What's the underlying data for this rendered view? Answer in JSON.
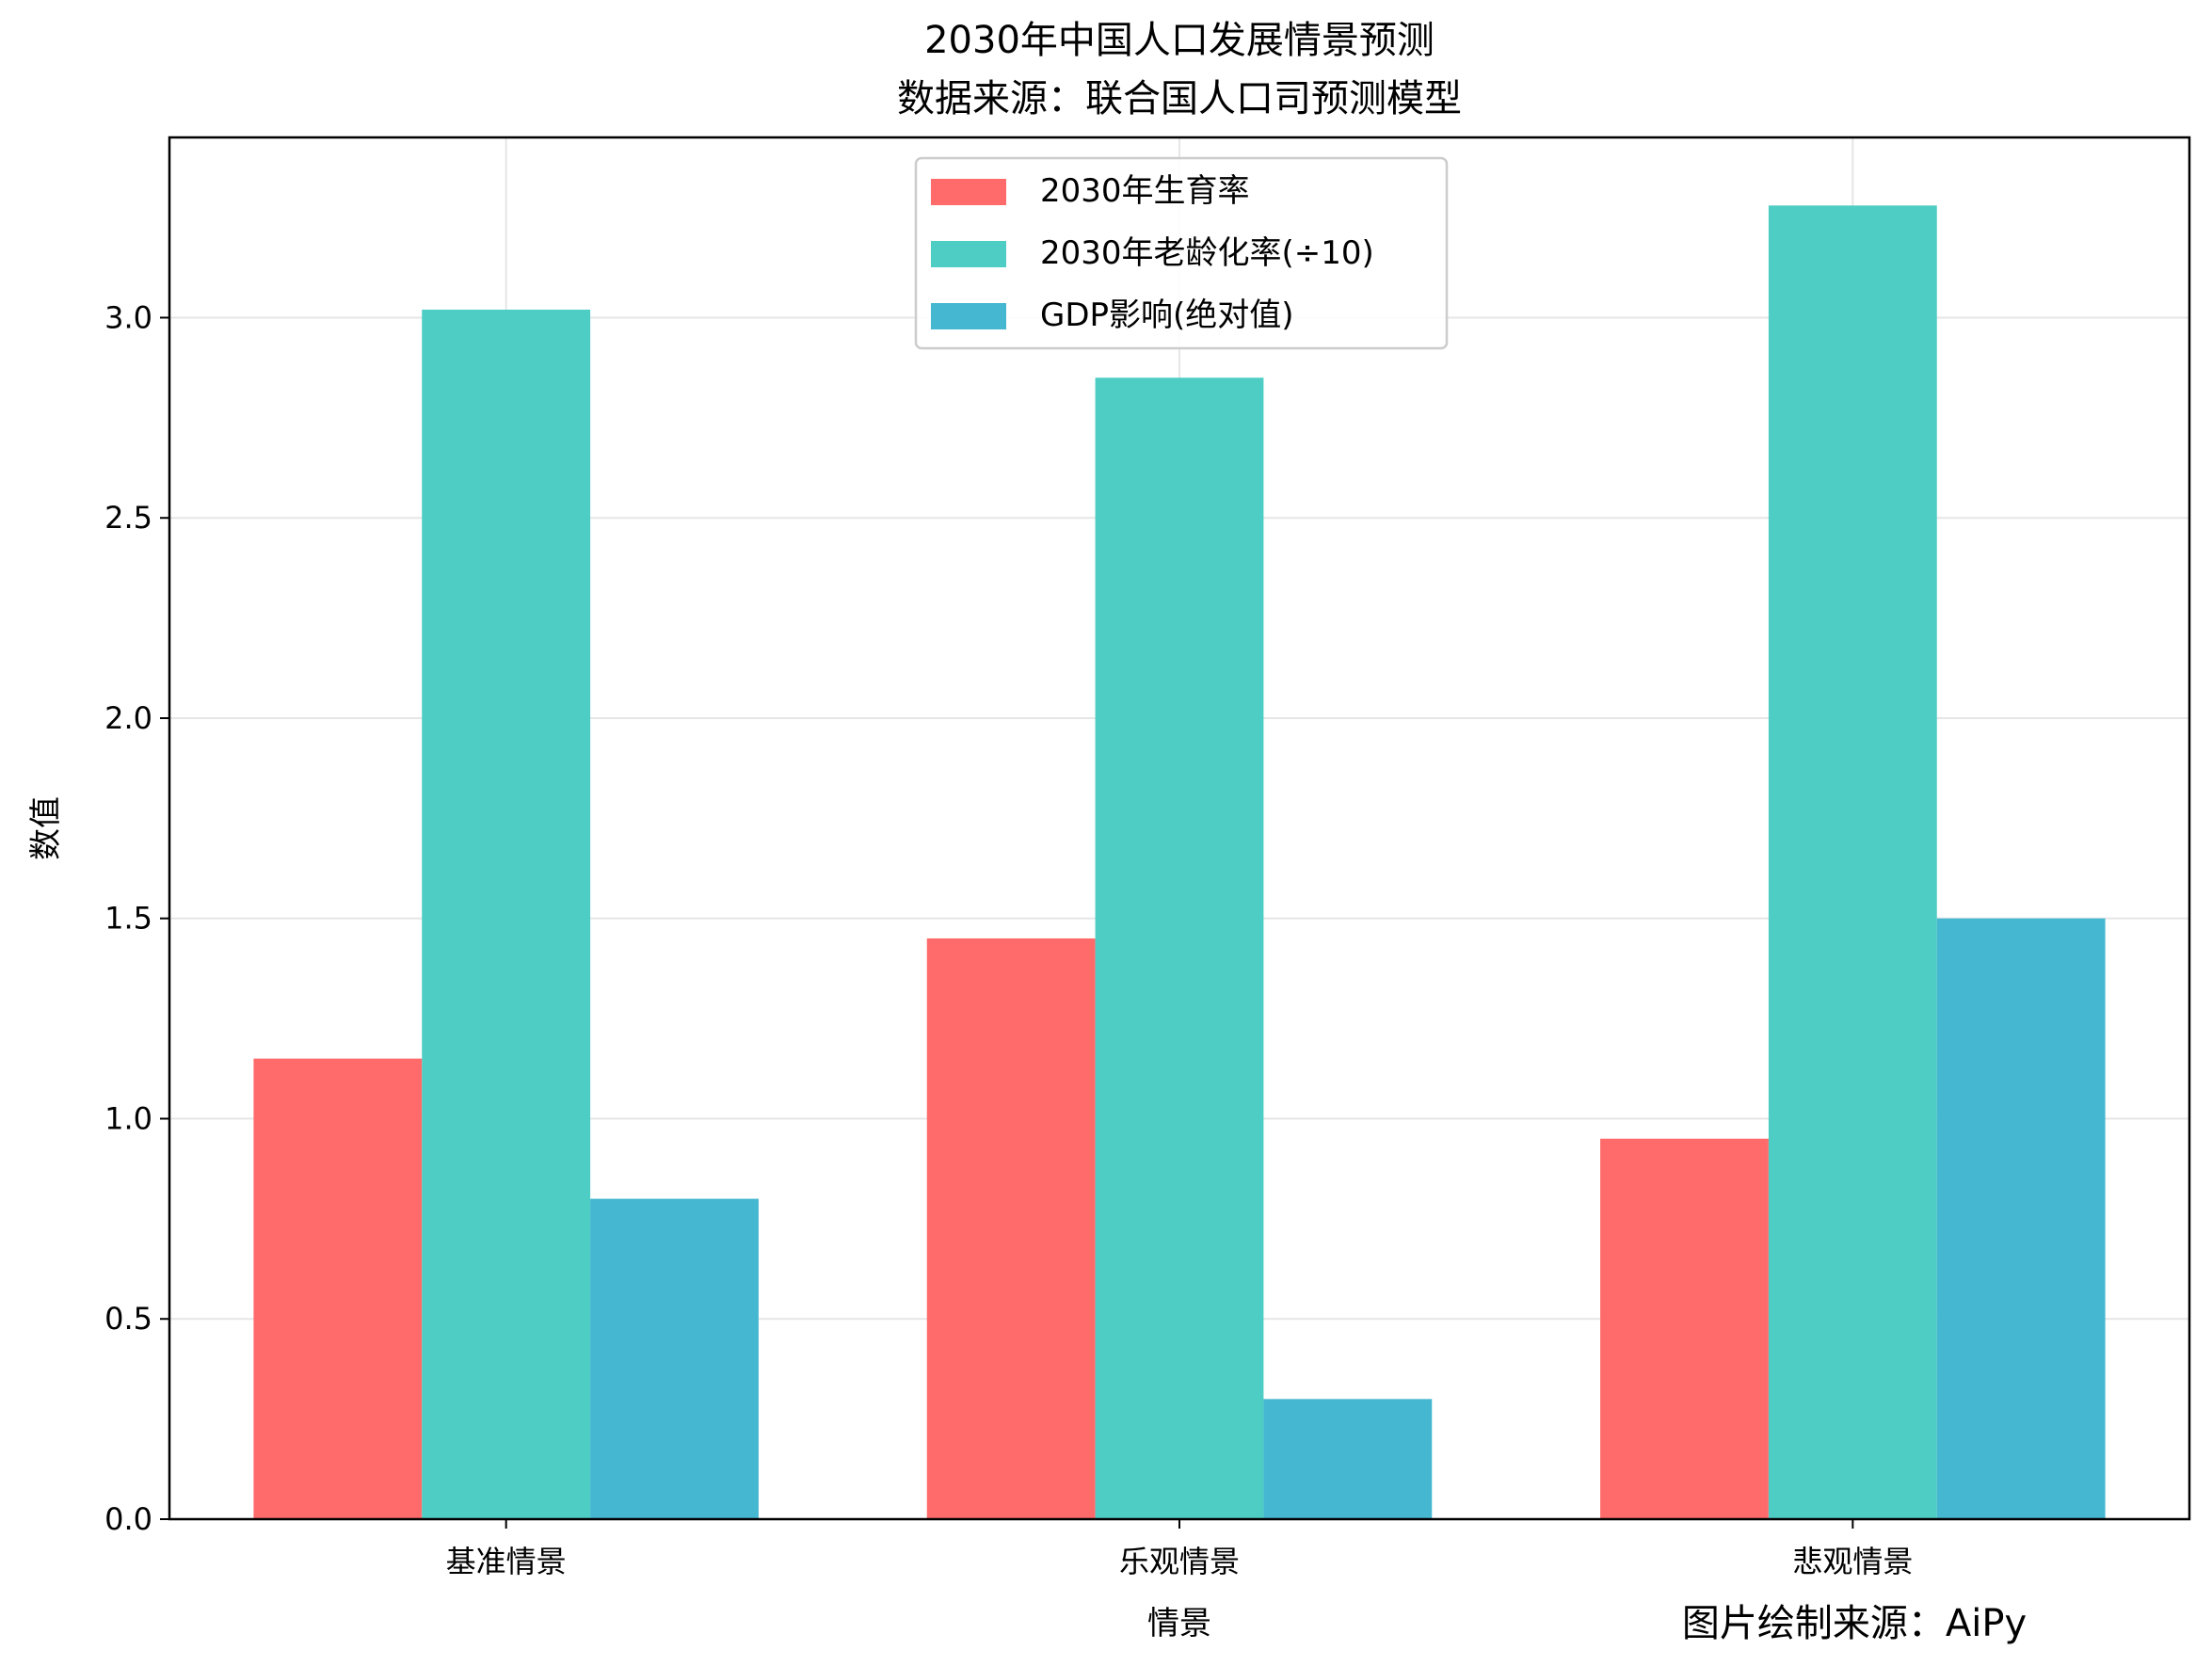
{
  "chart_data": {
    "type": "bar",
    "title": "2030年中国人口发展情景预测",
    "subtitle": "数据来源：联合国人口司预测模型",
    "xlabel": "情景",
    "ylabel": "数值",
    "categories": [
      "基准情景",
      "乐观情景",
      "悲观情景"
    ],
    "series": [
      {
        "name": "2030年生育率",
        "values": [
          1.15,
          1.45,
          0.95
        ],
        "color": "#FF6B6B"
      },
      {
        "name": "2030年老龄化率(÷10)",
        "values": [
          3.02,
          2.85,
          3.28
        ],
        "color": "#4ECDC4"
      },
      {
        "name": "GDP影响(绝对值)",
        "values": [
          0.8,
          0.3,
          1.5
        ],
        "color": "#45B7D1"
      }
    ],
    "ylim": [
      0,
      3.45
    ],
    "yticks": [
      "0.0",
      "0.5",
      "1.0",
      "1.5",
      "2.0",
      "2.5",
      "3.0"
    ],
    "grid": true,
    "legend_position": "top-center"
  },
  "footer": {
    "source_note": "图片绘制来源：AiPy"
  }
}
